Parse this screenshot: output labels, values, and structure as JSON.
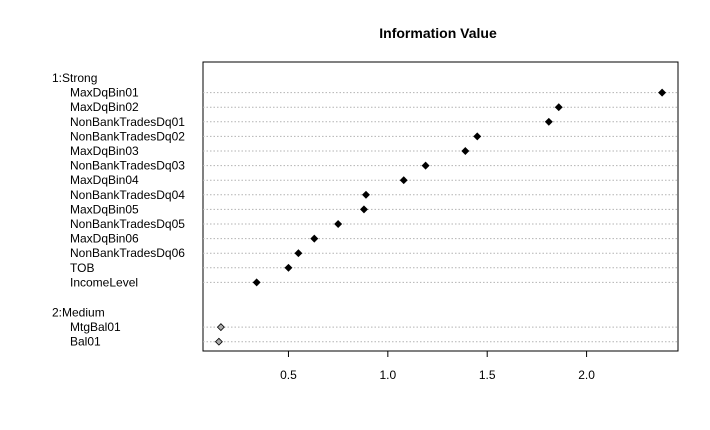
{
  "chart_data": {
    "type": "scatter",
    "title": "Information Value",
    "xlabel": "",
    "ylabel": "",
    "x_ticks": [
      0.5,
      1.0,
      1.5,
      2.0
    ],
    "x_tick_labels": [
      "0.5",
      "1.0",
      "1.5",
      "2.0"
    ],
    "xlim": [
      0.07,
      2.46
    ],
    "groups": [
      {
        "name": "1:Strong",
        "point_color": "#000000",
        "items": [
          {
            "label": "MaxDqBin01",
            "value": 2.38
          },
          {
            "label": "MaxDqBin02",
            "value": 1.86
          },
          {
            "label": "NonBankTradesDq01",
            "value": 1.81
          },
          {
            "label": "NonBankTradesDq02",
            "value": 1.45
          },
          {
            "label": "MaxDqBin03",
            "value": 1.39
          },
          {
            "label": "NonBankTradesDq03",
            "value": 1.19
          },
          {
            "label": "MaxDqBin04",
            "value": 1.08
          },
          {
            "label": "NonBankTradesDq04",
            "value": 0.89
          },
          {
            "label": "MaxDqBin05",
            "value": 0.88
          },
          {
            "label": "NonBankTradesDq05",
            "value": 0.75
          },
          {
            "label": "MaxDqBin06",
            "value": 0.63
          },
          {
            "label": "NonBankTradesDq06",
            "value": 0.55
          },
          {
            "label": "TOB",
            "value": 0.5
          },
          {
            "label": "IncomeLevel",
            "value": 0.34
          }
        ]
      },
      {
        "name": "2:Medium",
        "point_color": "#aaaaaa",
        "items": [
          {
            "label": "MtgBal01",
            "value": 0.16
          },
          {
            "label": "Bal01",
            "value": 0.15
          }
        ]
      }
    ],
    "grid": "horizontal-dotted",
    "legend": "none"
  }
}
